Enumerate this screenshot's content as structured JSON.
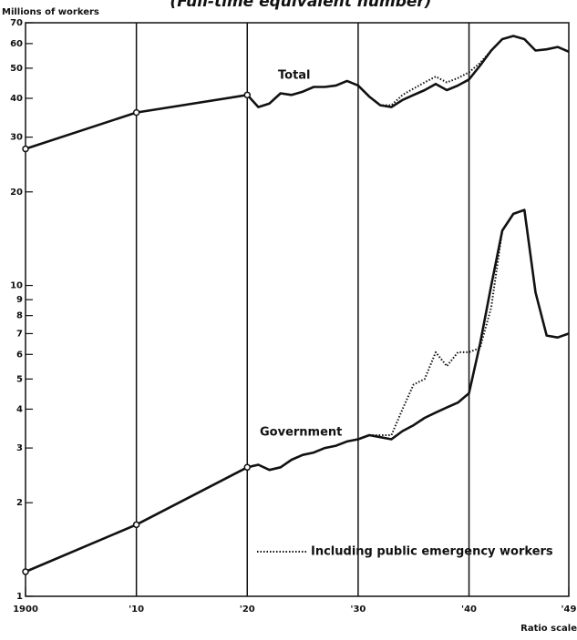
{
  "chart_data": {
    "type": "line",
    "title": "(Full-time equivalent number)",
    "y_label": "Millions of workers",
    "scale_note": "Ratio scale",
    "log_scale": true,
    "grid": true,
    "color": "#111111",
    "xlim": [
      1900,
      1949
    ],
    "xticks": [
      1900,
      {
        "value": 1910,
        "label": "'10"
      },
      {
        "value": 1920,
        "label": "'20"
      },
      {
        "value": 1930,
        "label": "'30"
      },
      {
        "value": 1940,
        "label": "'40"
      },
      {
        "value": 1949,
        "label": "'49"
      }
    ],
    "ylim": [
      1,
      70
    ],
    "yticks": [
      1,
      2,
      3,
      4,
      5,
      6,
      7,
      8,
      9,
      10,
      20,
      30,
      40,
      50,
      60,
      70
    ],
    "x": [
      1900,
      1910,
      1920,
      1921,
      1922,
      1923,
      1924,
      1925,
      1926,
      1927,
      1928,
      1929,
      1930,
      1931,
      1932,
      1933,
      1934,
      1935,
      1936,
      1937,
      1938,
      1939,
      1940,
      1941,
      1942,
      1943,
      1944,
      1945,
      1946,
      1947,
      1948,
      1949
    ],
    "annotations": [
      "Total",
      "Government"
    ],
    "series": [
      {
        "name": "Total",
        "style": "solid",
        "values": [
          27.5,
          36,
          41,
          37.5,
          38.5,
          41.5,
          41,
          42,
          43.5,
          43.5,
          44,
          45.5,
          44,
          40.5,
          38,
          37.5,
          39.5,
          41,
          42.5,
          44.5,
          42.5,
          44,
          46,
          51,
          57,
          62,
          63.5,
          62,
          57,
          57.5,
          58.5,
          56.5
        ]
      },
      {
        "name": "Total including public emergency workers",
        "style": "dotted",
        "values": [
          null,
          null,
          null,
          null,
          null,
          null,
          null,
          null,
          null,
          null,
          null,
          null,
          44,
          40.5,
          38,
          38,
          41,
          43,
          45,
          47,
          45,
          46.5,
          48.5,
          52,
          57,
          null,
          null,
          null,
          null,
          null,
          null,
          null
        ]
      },
      {
        "name": "Government",
        "style": "solid",
        "values": [
          1.2,
          1.7,
          2.6,
          2.65,
          2.55,
          2.6,
          2.75,
          2.85,
          2.9,
          3.0,
          3.05,
          3.15,
          3.2,
          3.3,
          3.25,
          3.2,
          3.4,
          3.55,
          3.75,
          3.9,
          4.05,
          4.2,
          4.5,
          6.5,
          10,
          15,
          17,
          17.5,
          9.5,
          6.9,
          6.8,
          7
        ]
      },
      {
        "name": "Including public emergency workers",
        "style": "dotted",
        "values": [
          null,
          null,
          null,
          null,
          null,
          null,
          null,
          null,
          null,
          null,
          null,
          null,
          null,
          3.3,
          3.3,
          3.3,
          4.0,
          4.8,
          5.0,
          6.1,
          5.5,
          6.1,
          6.1,
          6.3,
          8.5,
          15,
          null,
          null,
          null,
          null,
          null,
          null
        ]
      }
    ],
    "legend": "Including public emergency workers"
  }
}
